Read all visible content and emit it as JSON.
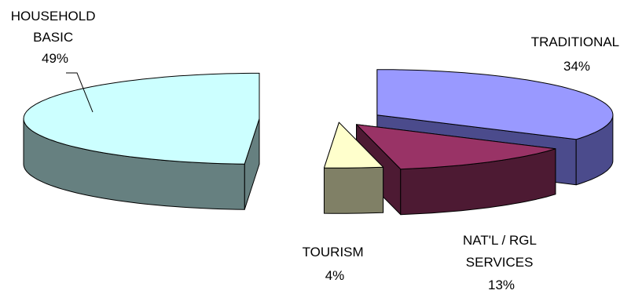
{
  "chart_data": {
    "type": "pie",
    "style": "3d-exploded",
    "title": "",
    "slices": [
      {
        "label_lines": [
          "TRADITIONAL"
        ],
        "value": 34,
        "value_label": "34%",
        "top_color": "#9999ff",
        "side_color": "#4b4b8c"
      },
      {
        "label_lines": [
          "NAT'L / RGL",
          "SERVICES"
        ],
        "value": 13,
        "value_label": "13%",
        "top_color": "#993366",
        "side_color": "#4d1a33"
      },
      {
        "label_lines": [
          "TOURISM"
        ],
        "value": 4,
        "value_label": "4%",
        "top_color": "#ffffcc",
        "side_color": "#808066"
      },
      {
        "label_lines": [
          "HOUSEHOLD",
          "BASIC"
        ],
        "value": 49,
        "value_label": "49%",
        "top_color": "#ccffff",
        "side_color": "#668080"
      }
    ],
    "legend": "none"
  }
}
